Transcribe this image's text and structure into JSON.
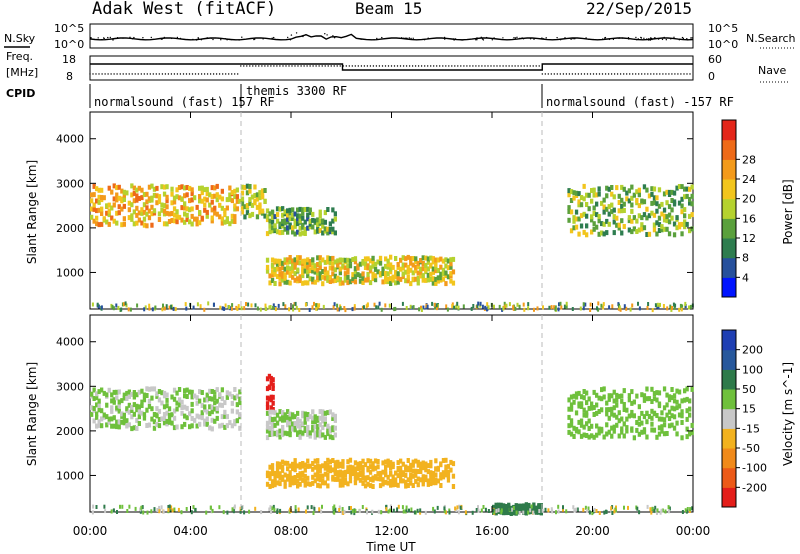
{
  "header": {
    "station": "Adak West (fitACF)",
    "beam": "Beam 15",
    "date": "22/Sep/2015"
  },
  "noise_panel": {
    "left_label": "N.Sky",
    "right_label": "N.Search",
    "left_ticks": [
      "10^5",
      "10^0"
    ],
    "right_ticks": [
      "10^5",
      "10^0"
    ]
  },
  "freq_panel": {
    "left_label_1": "Freq.",
    "left_label_2": "[MHz]",
    "right_label": "Nave",
    "left_ticks": [
      "18",
      "8"
    ],
    "right_ticks": [
      "60",
      "0"
    ]
  },
  "cpid": {
    "label": "CPID",
    "segments": [
      {
        "text": "normalsound (fast) 157 RF",
        "start_hour": 0
      },
      {
        "text": "themis 3300 RF",
        "start_hour": 6
      },
      {
        "text": "normalsound (fast) -157 RF",
        "start_hour": 18
      }
    ]
  },
  "x_axis": {
    "title": "Time UT",
    "ticks": [
      "00:00",
      "04:00",
      "08:00",
      "12:00",
      "16:00",
      "20:00",
      "00:00"
    ],
    "range_hours": [
      0,
      24
    ]
  },
  "power_colorbar": {
    "title": "Power [dB]",
    "ticks": [
      "4",
      "8",
      "12",
      "16",
      "20",
      "24",
      "28"
    ],
    "colors": [
      "#0014ff",
      "#26509c",
      "#2e7d4f",
      "#5aa03c",
      "#b5d22f",
      "#f2c51d",
      "#f39a1b",
      "#ee6a18",
      "#e4261a"
    ]
  },
  "velocity_colorbar": {
    "title": "Velocity [m s^-1]",
    "ticks": [
      "200",
      "100",
      "50",
      "15",
      "-15",
      "-50",
      "-100",
      "-200"
    ],
    "colors": [
      "#1f3fb3",
      "#27589c",
      "#2e7a4a",
      "#6fc03c",
      "#c8c8c8",
      "#f2b21f",
      "#f08a1a",
      "#ec5a18",
      "#e41e1a"
    ]
  },
  "chart_data": {
    "type": "heatmap",
    "title": "Adak West (fitACF) Beam 15 22/Sep/2015",
    "xlabel": "Time UT",
    "ylabel": "Slant Range [km]",
    "xlim": [
      0,
      24
    ],
    "ylim": [
      180,
      4600
    ],
    "yticks": [
      1000,
      2000,
      3000,
      4000
    ],
    "mode_boundaries_hours": [
      6,
      18
    ],
    "panels": [
      {
        "name": "Power",
        "units": "dB",
        "regions": [
          {
            "t_start": 0.0,
            "t_end": 6.0,
            "range_top_km": 3000,
            "range_bottom_km": 2100,
            "mean_value": 20
          },
          {
            "t_start": 6.0,
            "t_end": 7.0,
            "range_top_km": 3000,
            "range_bottom_km": 2300,
            "mean_value": 16
          },
          {
            "t_start": 7.0,
            "t_end": 9.8,
            "range_top_km": 2500,
            "range_bottom_km": 1900,
            "mean_value": 12
          },
          {
            "t_start": 7.0,
            "t_end": 14.5,
            "range_top_km": 1400,
            "range_bottom_km": 800,
            "mean_value": 18
          },
          {
            "t_start": 19.0,
            "t_end": 24.0,
            "range_top_km": 3000,
            "range_bottom_km": 1900,
            "mean_value": 14
          }
        ]
      },
      {
        "name": "Velocity",
        "units": "m s^-1",
        "regions": [
          {
            "t_start": 0.0,
            "t_end": 6.0,
            "range_top_km": 3000,
            "range_bottom_km": 2100,
            "mean_value": 0
          },
          {
            "t_start": 7.0,
            "t_end": 7.3,
            "range_top_km": 3300,
            "range_bottom_km": 2500,
            "mean_value": -200
          },
          {
            "t_start": 7.0,
            "t_end": 9.8,
            "range_top_km": 2500,
            "range_bottom_km": 1900,
            "mean_value": 0
          },
          {
            "t_start": 7.0,
            "t_end": 14.5,
            "range_top_km": 1400,
            "range_bottom_km": 800,
            "mean_value": -50
          },
          {
            "t_start": 16.0,
            "t_end": 18.0,
            "range_top_km": 400,
            "range_bottom_km": 200,
            "mean_value": 50
          },
          {
            "t_start": 19.0,
            "t_end": 24.0,
            "range_top_km": 3000,
            "range_bottom_km": 1900,
            "mean_value": 15
          }
        ]
      }
    ]
  }
}
